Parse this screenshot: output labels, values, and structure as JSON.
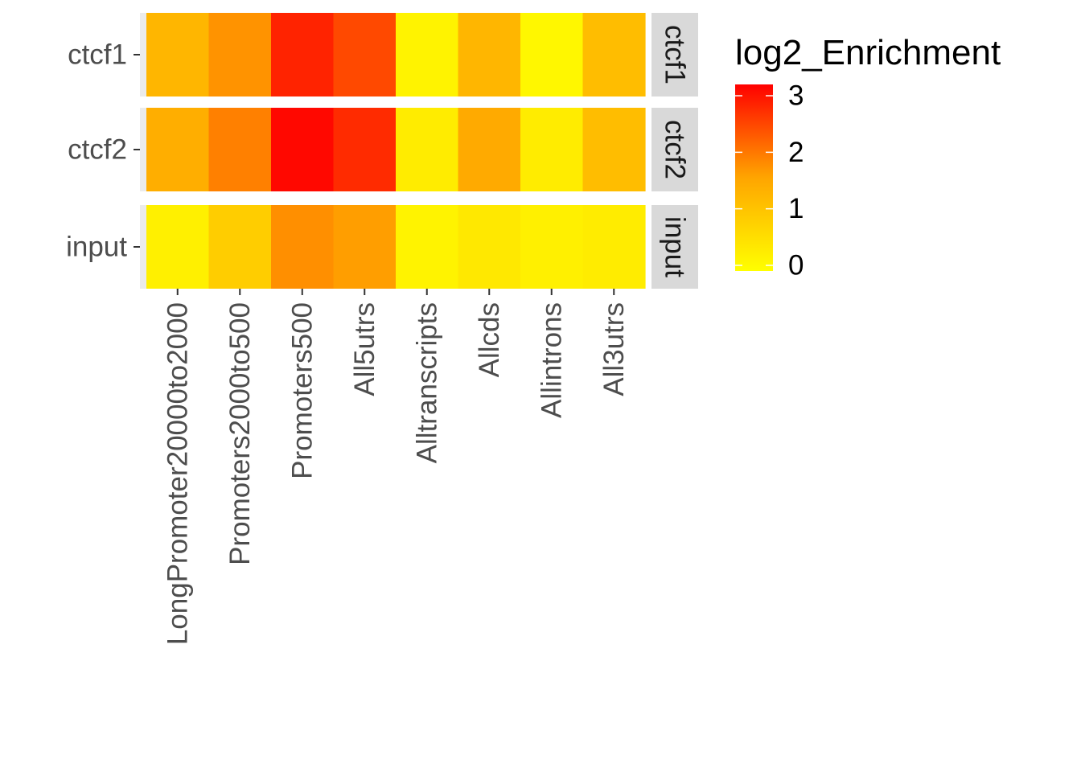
{
  "chart_data": {
    "type": "heatmap",
    "x_categories": [
      "LongPromoter20000to2000",
      "Promoters2000to500",
      "Promoters500",
      "All5utrs",
      "Alltranscripts",
      "Allcds",
      "Allintrons",
      "All3utrs"
    ],
    "y_categories": [
      "ctcf1",
      "ctcf2",
      "input"
    ],
    "facet_strips": [
      "ctcf1",
      "ctcf2",
      "input"
    ],
    "values": [
      [
        0.85,
        1.3,
        2.75,
        2.25,
        0.05,
        0.85,
        0.0,
        0.75
      ],
      [
        0.95,
        1.55,
        3.1,
        2.65,
        0.15,
        1.0,
        0.15,
        0.75
      ],
      [
        0.1,
        0.55,
        1.35,
        1.15,
        0.05,
        0.2,
        0.1,
        0.15
      ]
    ],
    "legend": {
      "title": "log2_Enrichment",
      "ticks": [
        0,
        1,
        2,
        3
      ],
      "range": [
        -0.1,
        3.2
      ],
      "colors": {
        "low": "#FFFF00",
        "high": "#FF0000"
      }
    }
  }
}
